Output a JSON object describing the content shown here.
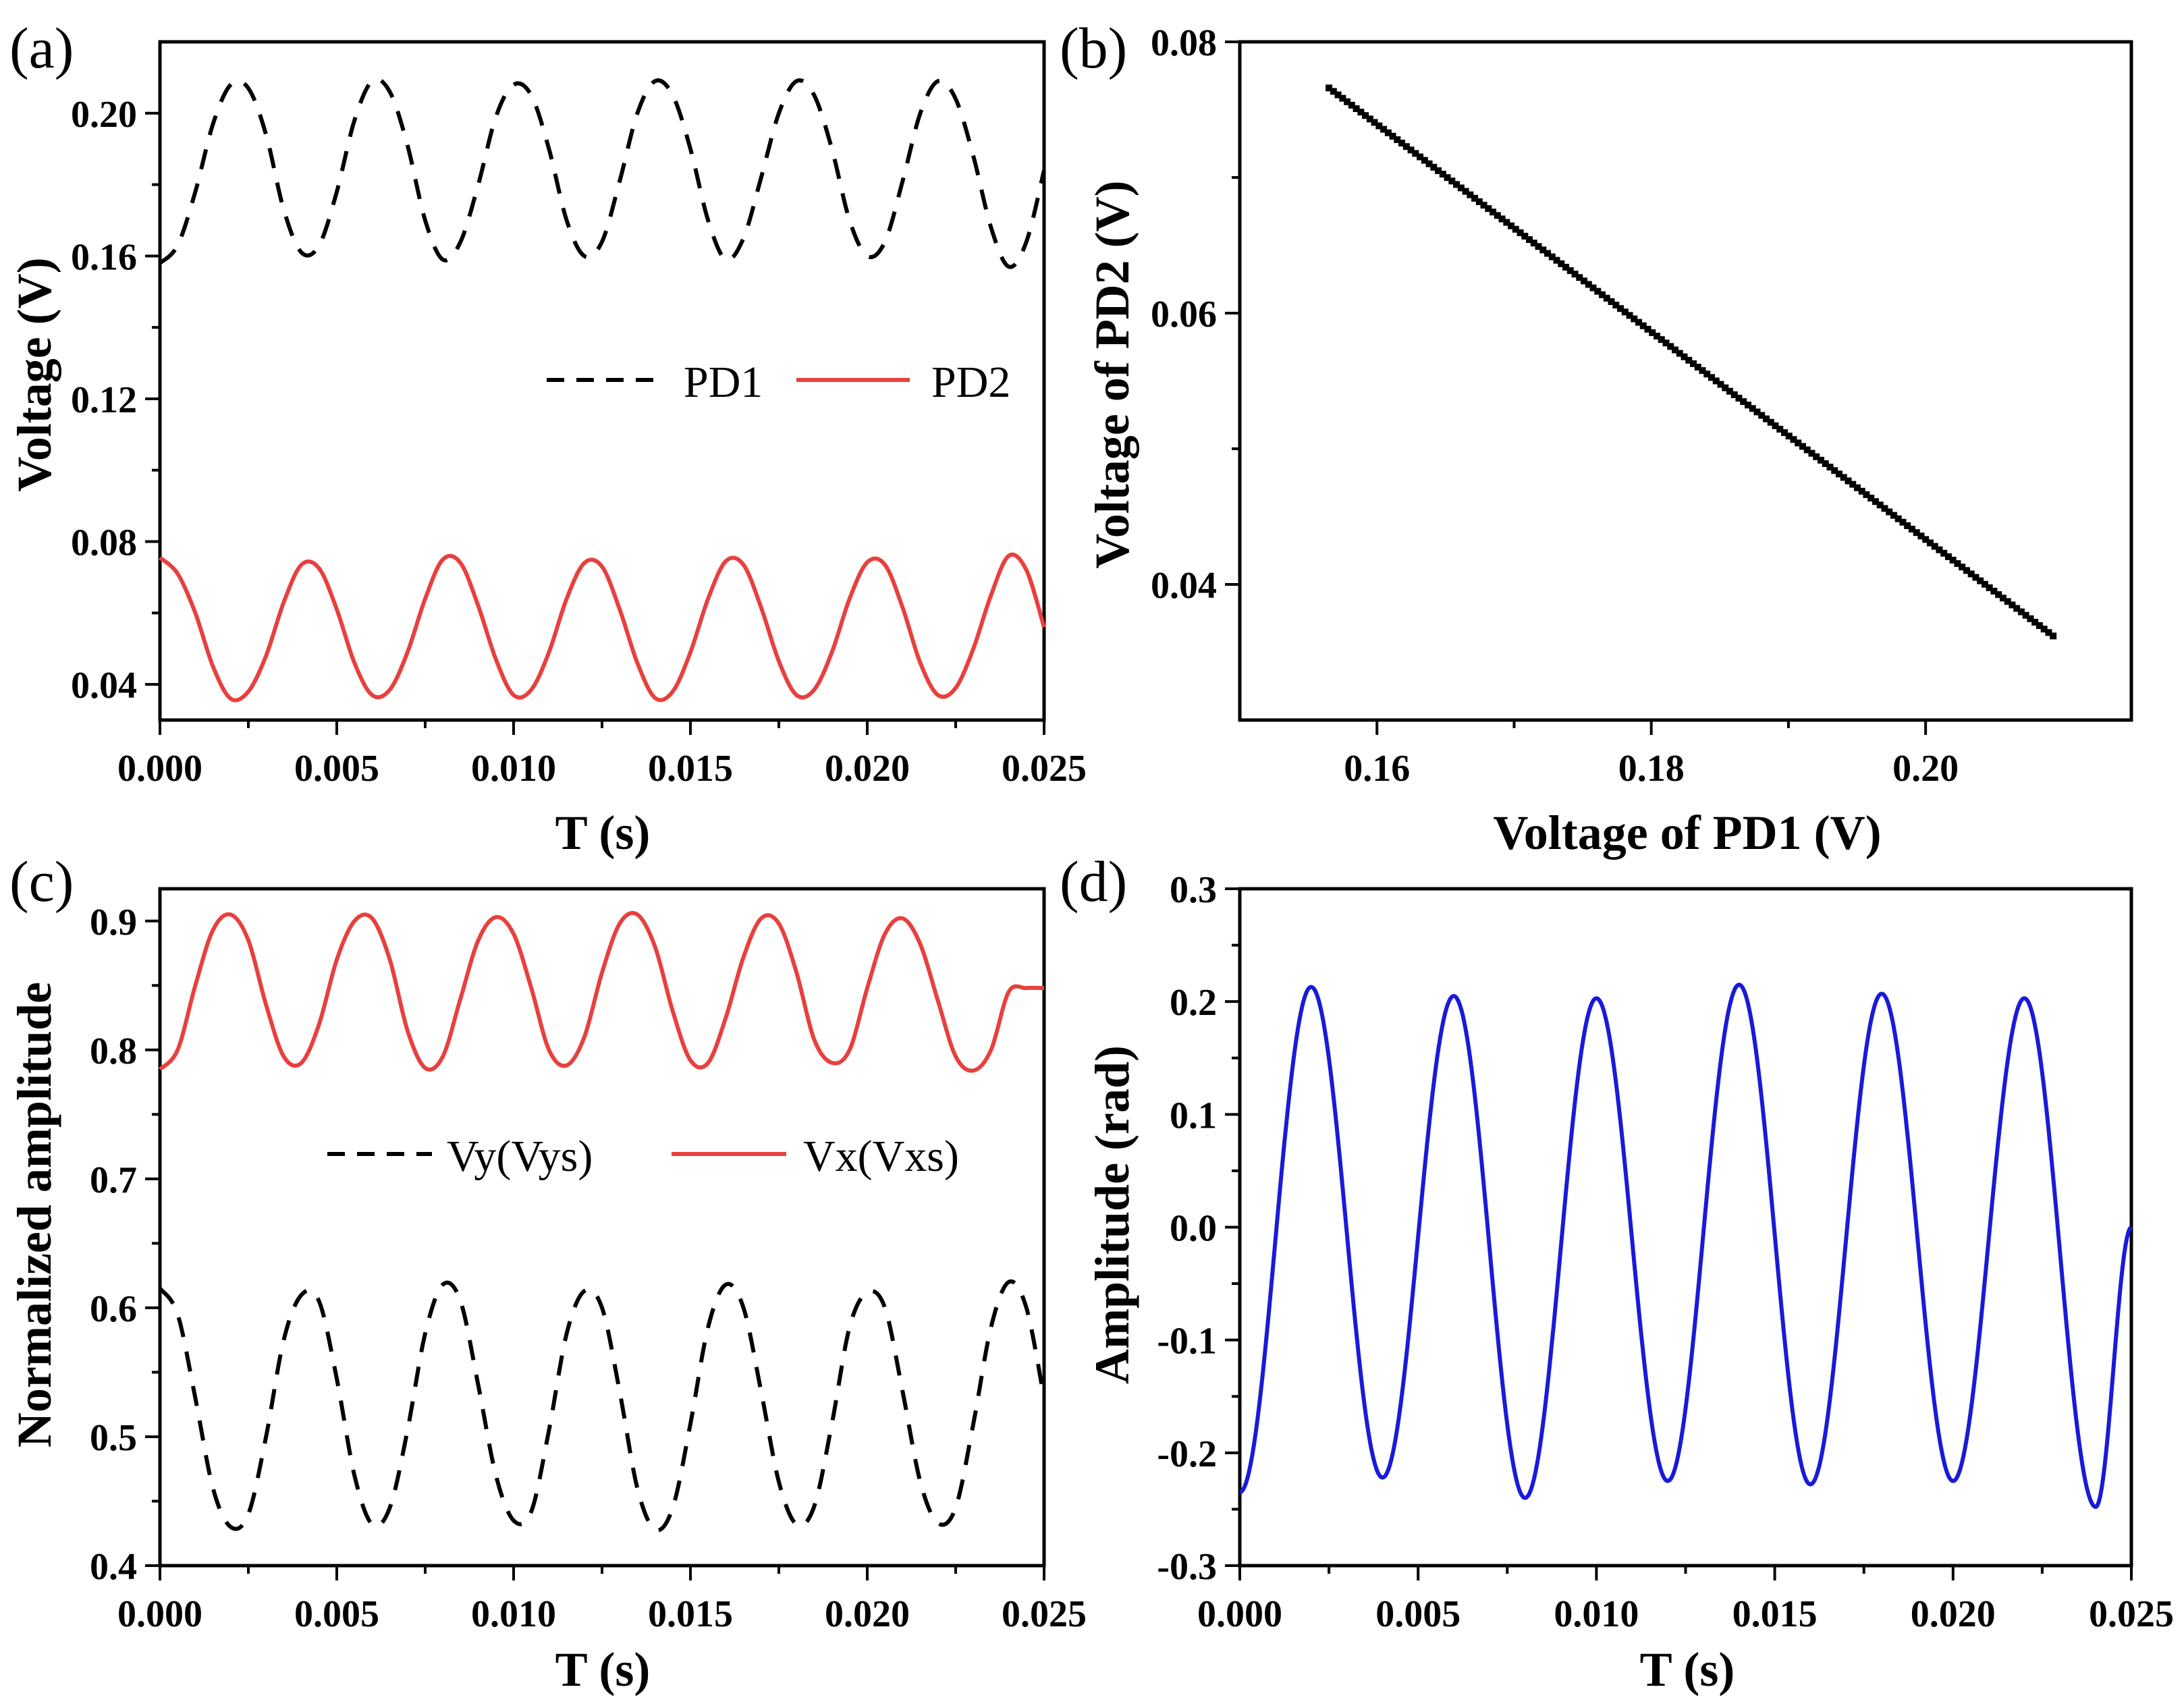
{
  "chart_data": [
    {
      "id": "a",
      "type": "line",
      "panel_label": "(a)",
      "xlabel": "T (s)",
      "ylabel": "Voltage (V)",
      "xlim": [
        0,
        0.025
      ],
      "ylim": [
        0.03,
        0.22
      ],
      "xticks": [
        0.0,
        0.005,
        0.01,
        0.015,
        0.02,
        0.025
      ],
      "xtick_labels": [
        "0.000",
        "0.005",
        "0.010",
        "0.015",
        "0.020",
        "0.025"
      ],
      "yticks": [
        0.04,
        0.08,
        0.12,
        0.16,
        0.2
      ],
      "ytick_labels": [
        "0.04",
        "0.08",
        "0.12",
        "0.16",
        "0.20"
      ],
      "legend": [
        "PD1",
        "PD2"
      ],
      "series": [
        {
          "name": "PD1",
          "color": "#000000",
          "dash": true,
          "x_step": 0.0005,
          "values": [
            0.158,
            0.163,
            0.178,
            0.197,
            0.208,
            0.207,
            0.194,
            0.173,
            0.161,
            0.163,
            0.178,
            0.198,
            0.209,
            0.206,
            0.191,
            0.17,
            0.159,
            0.164,
            0.18,
            0.199,
            0.208,
            0.205,
            0.19,
            0.17,
            0.16,
            0.164,
            0.181,
            0.2,
            0.209,
            0.205,
            0.19,
            0.17,
            0.159,
            0.165,
            0.182,
            0.2,
            0.209,
            0.205,
            0.19,
            0.17,
            0.16,
            0.164,
            0.181,
            0.2,
            0.209,
            0.204,
            0.188,
            0.168,
            0.157,
            0.164,
            0.184
          ]
        },
        {
          "name": "PD2",
          "color": "#e8403e",
          "dash": false,
          "x_step": 0.0005,
          "values": [
            0.0755,
            0.071,
            0.06,
            0.045,
            0.036,
            0.038,
            0.048,
            0.063,
            0.0735,
            0.0725,
            0.061,
            0.046,
            0.037,
            0.0385,
            0.049,
            0.064,
            0.075,
            0.074,
            0.062,
            0.047,
            0.037,
            0.0385,
            0.049,
            0.064,
            0.074,
            0.073,
            0.061,
            0.046,
            0.0362,
            0.038,
            0.049,
            0.064,
            0.0745,
            0.0735,
            0.0615,
            0.0465,
            0.037,
            0.0385,
            0.049,
            0.064,
            0.0742,
            0.0735,
            0.0615,
            0.046,
            0.037,
            0.039,
            0.05,
            0.065,
            0.076,
            0.072,
            0.056
          ]
        }
      ]
    },
    {
      "id": "b",
      "type": "scatter",
      "panel_label": "(b)",
      "xlabel": "Voltage of PD1 (V)",
      "ylabel": "Voltage of PD2 (V)",
      "xlim": [
        0.15,
        0.215
      ],
      "ylim": [
        0.03,
        0.08
      ],
      "xticks": [
        0.16,
        0.18,
        0.2
      ],
      "xtick_labels": [
        "0.16",
        "0.18",
        "0.20"
      ],
      "yticks": [
        0.04,
        0.06,
        0.08
      ],
      "ytick_labels": [
        "0.04",
        "0.06",
        "0.08"
      ],
      "series": [
        {
          "name": "PD1 vs PD2",
          "color": "#000000",
          "x_start": 0.1565,
          "x_end": 0.2093,
          "y_start": 0.0766,
          "y_end": 0.0362,
          "points": 160
        }
      ]
    },
    {
      "id": "c",
      "type": "line",
      "panel_label": "(c)",
      "xlabel": "T (s)",
      "ylabel": "Normalized amplitude",
      "xlim": [
        0,
        0.025
      ],
      "ylim": [
        0.4,
        0.925
      ],
      "xticks": [
        0.0,
        0.005,
        0.01,
        0.015,
        0.02,
        0.025
      ],
      "xtick_labels": [
        "0.000",
        "0.005",
        "0.010",
        "0.015",
        "0.020",
        "0.025"
      ],
      "yticks": [
        0.4,
        0.5,
        0.6,
        0.7,
        0.8,
        0.9
      ],
      "ytick_labels": [
        "0.4",
        "0.5",
        "0.6",
        "0.7",
        "0.8",
        "0.9"
      ],
      "legend": [
        "Vy(Vys)",
        "Vx(Vxs)"
      ],
      "series": [
        {
          "name": "Vy(Vys)",
          "color": "#000000",
          "dash": true,
          "x_step": 0.0005,
          "values": [
            0.615,
            0.595,
            0.53,
            0.46,
            0.43,
            0.44,
            0.5,
            0.575,
            0.61,
            0.605,
            0.545,
            0.47,
            0.432,
            0.445,
            0.505,
            0.58,
            0.618,
            0.605,
            0.54,
            0.47,
            0.435,
            0.442,
            0.505,
            0.58,
            0.613,
            0.6,
            0.535,
            0.46,
            0.428,
            0.445,
            0.51,
            0.585,
            0.618,
            0.6,
            0.535,
            0.465,
            0.432,
            0.446,
            0.51,
            0.585,
            0.612,
            0.6,
            0.535,
            0.465,
            0.433,
            0.445,
            0.51,
            0.585,
            0.62,
            0.6,
            0.53
          ]
        },
        {
          "name": "Vx(Vxs)",
          "color": "#e8403e",
          "dash": false,
          "x_step": 0.0005,
          "values": [
            0.785,
            0.8,
            0.85,
            0.893,
            0.905,
            0.885,
            0.835,
            0.795,
            0.79,
            0.82,
            0.87,
            0.9,
            0.902,
            0.87,
            0.815,
            0.786,
            0.795,
            0.84,
            0.885,
            0.903,
            0.89,
            0.848,
            0.8,
            0.788,
            0.81,
            0.86,
            0.898,
            0.905,
            0.88,
            0.83,
            0.792,
            0.79,
            0.825,
            0.872,
            0.902,
            0.898,
            0.86,
            0.808,
            0.79,
            0.8,
            0.848,
            0.89,
            0.902,
            0.882,
            0.838,
            0.795,
            0.784,
            0.8,
            0.845,
            0.848,
            0.848
          ]
        }
      ]
    },
    {
      "id": "d",
      "type": "line",
      "panel_label": "(d)",
      "xlabel": "T (s)",
      "ylabel": "Amplitude (rad)",
      "xlim": [
        0,
        0.025
      ],
      "ylim": [
        -0.3,
        0.3
      ],
      "xticks": [
        0.0,
        0.005,
        0.01,
        0.015,
        0.02,
        0.025
      ],
      "xtick_labels": [
        "0.000",
        "0.005",
        "0.010",
        "0.015",
        "0.020",
        "0.025"
      ],
      "yticks": [
        -0.3,
        -0.2,
        -0.1,
        0.0,
        0.1,
        0.2,
        0.3
      ],
      "ytick_labels": [
        "-0.3",
        "-0.2",
        "-0.1",
        "0.0",
        "0.1",
        "0.2",
        "0.3"
      ],
      "series": [
        {
          "name": "Amplitude",
          "color": "#1a1ad8",
          "dash": false,
          "period": 0.004,
          "phase_min_at": 0.0,
          "peaks": [
            0.213,
            0.205,
            0.203,
            0.215,
            0.207,
            0.203
          ],
          "troughs": [
            -0.235,
            -0.222,
            -0.24,
            -0.225,
            -0.228,
            -0.225,
            -0.248
          ],
          "end_value": 0.0
        }
      ]
    }
  ]
}
